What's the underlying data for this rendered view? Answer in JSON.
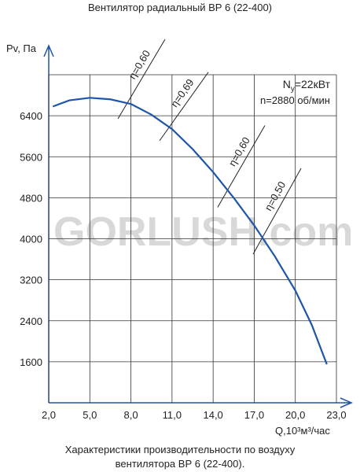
{
  "chart_data": {
    "type": "line",
    "title": "Вентилятор радиальный ВР 6 (22-400)",
    "ylabel": "Pv, Па",
    "xlabel": "Q,10³м³/час",
    "caption": [
      "Характеристики производительности по воздуху",
      "вентилятора  ВР 6 (22-400)."
    ],
    "watermark": "GORLUSH.com",
    "power": {
      "symbol": "N",
      "subscript": "у",
      "value": "=22кВт"
    },
    "speed": "n=2880 об/мин",
    "x": [
      2.3,
      3.5,
      5.0,
      6.5,
      8.0,
      9.5,
      11.0,
      12.5,
      14.0,
      15.5,
      17.0,
      18.5,
      20.0,
      21.2,
      22.3
    ],
    "series": [
      {
        "color": "#1f55a8",
        "values": [
          6580,
          6700,
          6750,
          6720,
          6630,
          6420,
          6140,
          5750,
          5300,
          4800,
          4260,
          3660,
          2990,
          2320,
          1550
        ]
      }
    ],
    "efficiency_lines": [
      {
        "label": "η=0,60",
        "x": [
          7.05,
          10.49
        ],
        "y": [
          6340,
          7890
        ]
      },
      {
        "label": "η=0,69",
        "x": [
          10.09,
          13.65
        ],
        "y": [
          5913,
          7250
        ]
      },
      {
        "label": "η=0,60",
        "x": [
          14.33,
          17.78
        ],
        "y": [
          4614,
          6210
        ]
      },
      {
        "label": "η=0,50",
        "x": [
          16.92,
          20.42
        ],
        "y": [
          3700,
          5373
        ]
      }
    ],
    "xlim": [
      2,
      23
    ],
    "ylim": [
      800,
      7200
    ],
    "xticks": [
      {
        "value": 2,
        "label": "2,0"
      },
      {
        "value": 5,
        "label": "5,0"
      },
      {
        "value": 8,
        "label": "8,0"
      },
      {
        "value": 11,
        "label": "11,0"
      },
      {
        "value": 14,
        "label": "14,0"
      },
      {
        "value": 17,
        "label": "17,0"
      },
      {
        "value": 20,
        "label": "20,0"
      },
      {
        "value": 23,
        "label": "23,0"
      }
    ],
    "yticks": [
      1600,
      2400,
      3200,
      4000,
      4800,
      5600,
      6400
    ],
    "grid": true
  }
}
